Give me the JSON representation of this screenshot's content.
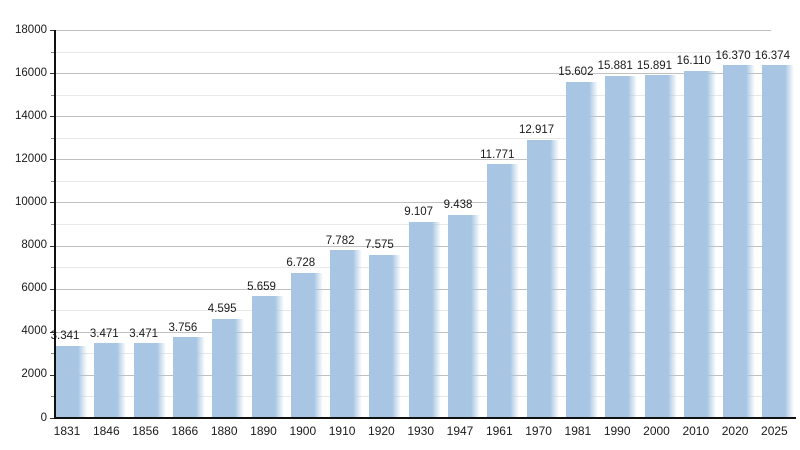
{
  "chart_data": {
    "type": "bar",
    "categories": [
      "1831",
      "1846",
      "1856",
      "1866",
      "1880",
      "1890",
      "1900",
      "1910",
      "1920",
      "1930",
      "1947",
      "1961",
      "1970",
      "1981",
      "1990",
      "2000",
      "2010",
      "2020",
      "2025"
    ],
    "values": [
      3341,
      3471,
      3471,
      3756,
      4595,
      5659,
      6728,
      7782,
      7575,
      9107,
      9438,
      11771,
      12917,
      15602,
      15881,
      15891,
      16110,
      16370,
      16374
    ],
    "bar_value_labels": [
      "3.341",
      "3.471",
      "3.471",
      "3.756",
      "4.595",
      "5.659",
      "6.728",
      "7.782",
      "7.575",
      "9.107",
      "9.438",
      "11.771",
      "12.917",
      "15.602",
      "15.881",
      "15.891",
      "16.110",
      "16.370",
      "16.374"
    ],
    "ylim": [
      0,
      18000
    ],
    "y_major_tick_step": 2000,
    "y_minor_tick_step": 1000,
    "y_tick_labels": [
      "0",
      "2000",
      "4000",
      "6000",
      "8000",
      "10000",
      "12000",
      "14000",
      "16000",
      "18000"
    ],
    "grid": "on",
    "legend": "none"
  },
  "colors": {
    "bar": "#a8c6e3",
    "bar_fade_end": "rgba(168,198,227,0)",
    "grid_major": "#c0c0c0",
    "grid_minor": "#e8e8e8",
    "axis": "#111111",
    "tick_major": "#333333",
    "tick_minor": "#888888",
    "text": "#1a1a1a",
    "background": "#ffffff"
  }
}
